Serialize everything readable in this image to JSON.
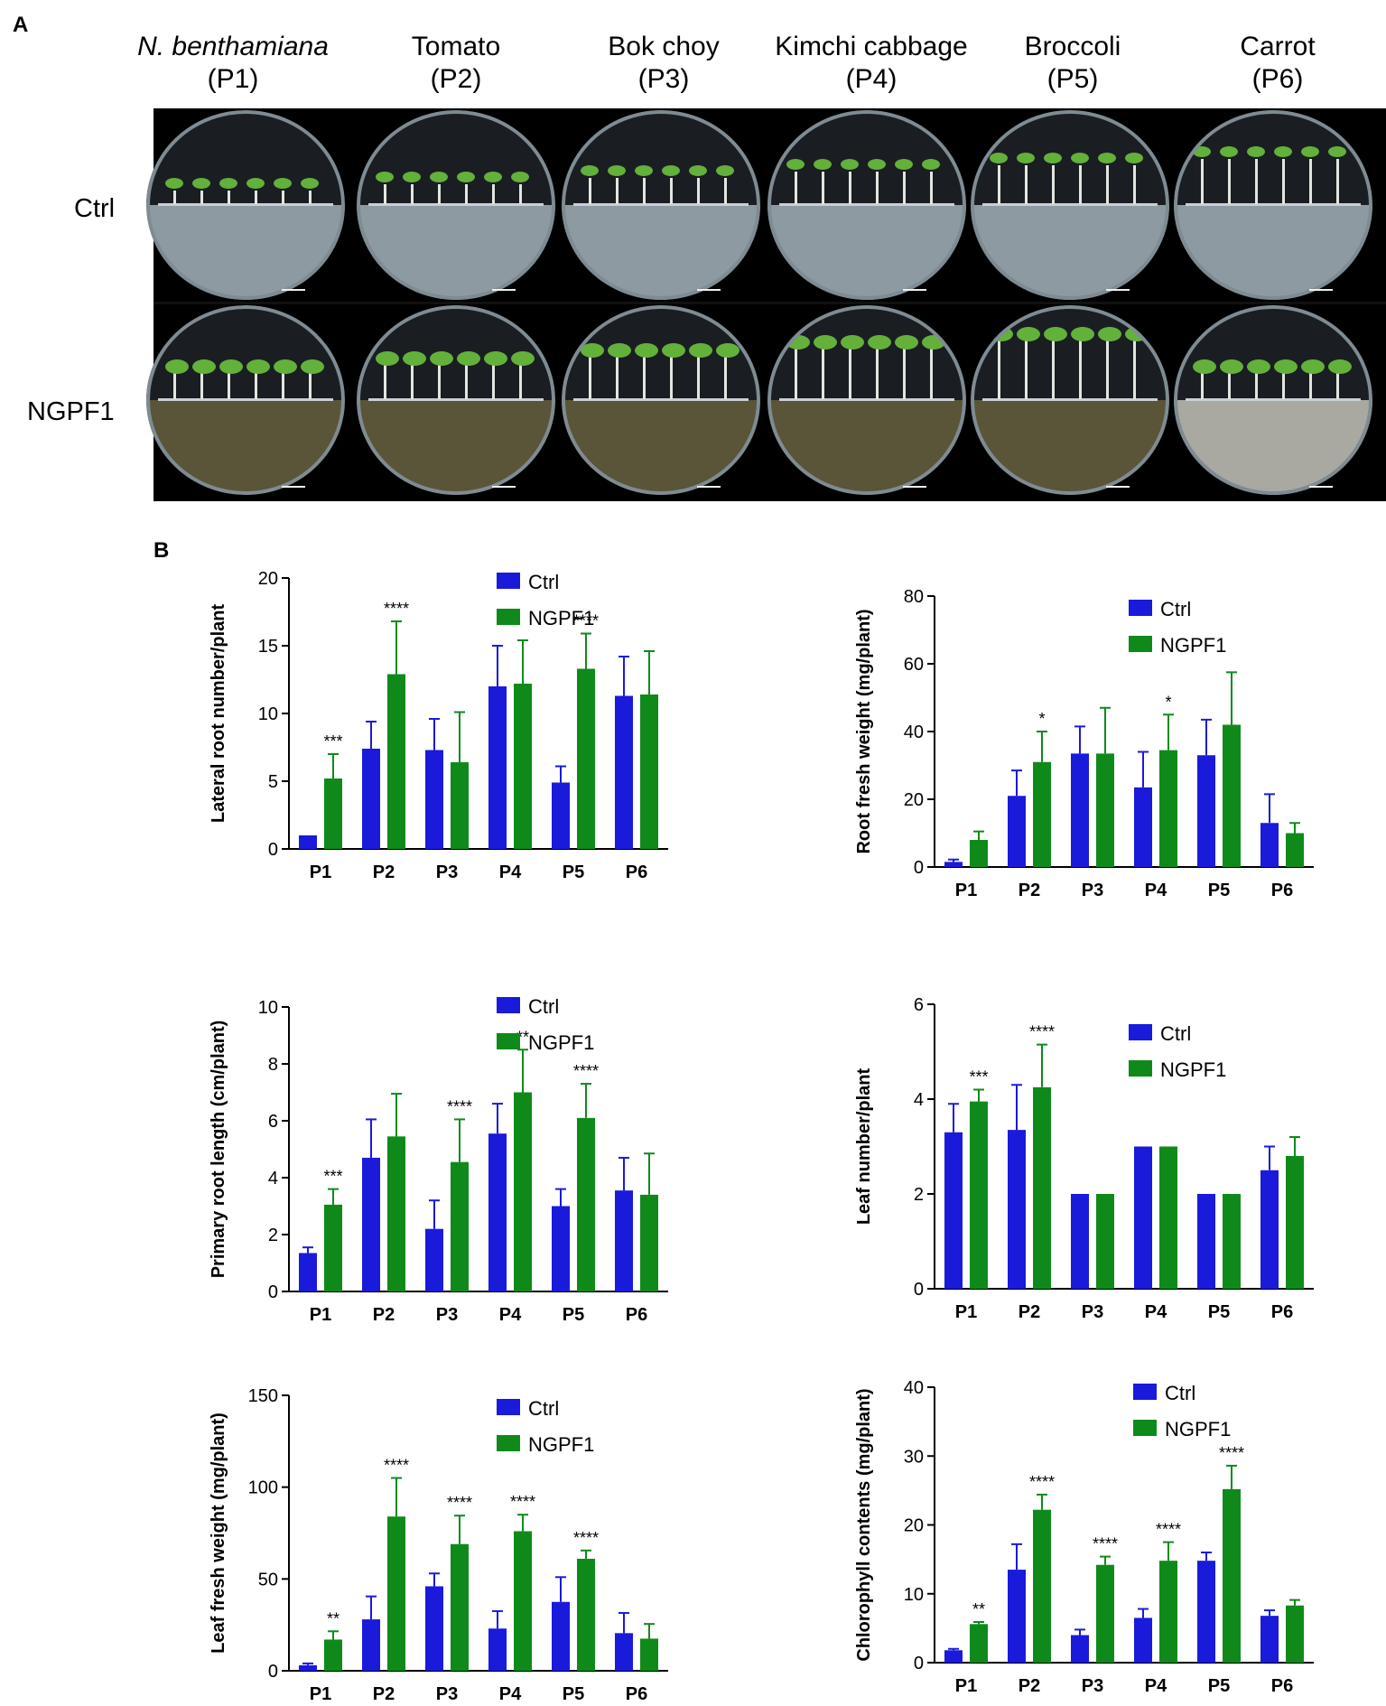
{
  "figure": {
    "panel_a_label": "A",
    "panel_b_label": "B",
    "row_labels": [
      "Ctrl",
      "NGPF1"
    ],
    "columns": [
      {
        "name": "N. benthamiana",
        "code": "(P1)",
        "italic": true
      },
      {
        "name": "Tomato",
        "code": "(P2)",
        "italic": false
      },
      {
        "name": "Bok choy",
        "code": "(P3)",
        "italic": false
      },
      {
        "name": "Kimchi cabbage",
        "code": "(P4)",
        "italic": false
      },
      {
        "name": "Broccoli",
        "code": "(P5)",
        "italic": false
      },
      {
        "name": "Carrot",
        "code": "(P6)",
        "italic": false
      }
    ],
    "colors": {
      "ctrl": "#1a1adb",
      "ngpf1": "#0f8a1a",
      "agar_ctrl": "#8e9aa2",
      "agar_ngpf1": "#5a5439",
      "agar_carrot": "#a9a9a2"
    }
  },
  "chart_data": [
    {
      "type": "bar",
      "ylabel": "Lateral root number/plant",
      "categories": [
        "P1",
        "P2",
        "P3",
        "P4",
        "P5",
        "P6"
      ],
      "ylim": [
        0,
        20
      ],
      "yticks": [
        0,
        5,
        10,
        15,
        20
      ],
      "legend": [
        "Ctrl",
        "NGPF1"
      ],
      "series": [
        {
          "name": "Ctrl",
          "values": [
            1.0,
            7.4,
            7.3,
            12.0,
            4.9,
            11.3
          ],
          "errors": [
            0.0,
            2.0,
            2.3,
            3.0,
            1.2,
            2.9
          ]
        },
        {
          "name": "NGPF1",
          "values": [
            5.2,
            12.9,
            6.4,
            12.2,
            13.3,
            11.4
          ],
          "errors": [
            1.8,
            3.9,
            3.7,
            3.2,
            2.6,
            3.2
          ]
        }
      ],
      "significance": [
        "***",
        "****",
        "",
        "",
        "****",
        ""
      ]
    },
    {
      "type": "bar",
      "ylabel": "Root fresh weight (mg/plant)",
      "categories": [
        "P1",
        "P2",
        "P3",
        "P4",
        "P5",
        "P6"
      ],
      "ylim": [
        0,
        80
      ],
      "yticks": [
        0,
        20,
        40,
        60,
        80
      ],
      "legend": [
        "Ctrl",
        "NGPF1"
      ],
      "series": [
        {
          "name": "Ctrl",
          "values": [
            1.5,
            21.0,
            33.5,
            23.5,
            33.0,
            13.0
          ],
          "errors": [
            0.7,
            7.5,
            8.0,
            10.5,
            10.5,
            8.5
          ]
        },
        {
          "name": "NGPF1",
          "values": [
            8.0,
            31.0,
            33.5,
            34.5,
            42.0,
            10.0
          ],
          "errors": [
            2.5,
            9.0,
            13.5,
            10.5,
            15.5,
            3.0
          ]
        }
      ],
      "significance": [
        "",
        "*",
        "",
        "*",
        "",
        ""
      ]
    },
    {
      "type": "bar",
      "ylabel": "Primary root length (cm/plant)",
      "categories": [
        "P1",
        "P2",
        "P3",
        "P4",
        "P5",
        "P6"
      ],
      "ylim": [
        0,
        10
      ],
      "yticks": [
        0,
        2,
        4,
        6,
        8,
        10
      ],
      "legend": [
        "Ctrl",
        "NGPF1"
      ],
      "series": [
        {
          "name": "Ctrl",
          "values": [
            1.35,
            4.7,
            2.2,
            5.55,
            3.0,
            3.55
          ],
          "errors": [
            0.2,
            1.35,
            1.0,
            1.05,
            0.6,
            1.15
          ]
        },
        {
          "name": "NGPF1",
          "values": [
            3.05,
            5.45,
            4.55,
            7.0,
            6.1,
            3.4
          ],
          "errors": [
            0.55,
            1.5,
            1.5,
            1.5,
            1.2,
            1.45
          ]
        }
      ],
      "significance": [
        "***",
        "",
        "****",
        "**",
        "****",
        ""
      ]
    },
    {
      "type": "bar",
      "ylabel": "Leaf number/plant",
      "categories": [
        "P1",
        "P2",
        "P3",
        "P4",
        "P5",
        "P6"
      ],
      "ylim": [
        0,
        6
      ],
      "yticks": [
        0,
        2,
        4,
        6
      ],
      "legend": [
        "Ctrl",
        "NGPF1"
      ],
      "series": [
        {
          "name": "Ctrl",
          "values": [
            3.3,
            3.35,
            2.0,
            3.0,
            2.0,
            2.5
          ],
          "errors": [
            0.6,
            0.95,
            0.0,
            0.0,
            0.0,
            0.5
          ]
        },
        {
          "name": "NGPF1",
          "values": [
            3.95,
            4.25,
            2.0,
            3.0,
            2.0,
            2.8
          ],
          "errors": [
            0.25,
            0.9,
            0.0,
            0.0,
            0.0,
            0.4
          ]
        }
      ],
      "significance": [
        "***",
        "****",
        "",
        "",
        "",
        ""
      ]
    },
    {
      "type": "bar",
      "ylabel": "Leaf fresh weight (mg/plant)",
      "categories": [
        "P1",
        "P2",
        "P3",
        "P4",
        "P5",
        "P6"
      ],
      "ylim": [
        0,
        150
      ],
      "yticks": [
        0,
        50,
        100,
        150
      ],
      "legend": [
        "Ctrl",
        "NGPF1"
      ],
      "series": [
        {
          "name": "Ctrl",
          "values": [
            3.0,
            28.0,
            46.0,
            23.0,
            37.5,
            20.5
          ],
          "errors": [
            1.0,
            12.5,
            7.0,
            9.5,
            13.5,
            11.0
          ]
        },
        {
          "name": "NGPF1",
          "values": [
            17.0,
            84.0,
            69.0,
            76.0,
            61.0,
            17.5
          ],
          "errors": [
            4.5,
            21.0,
            15.5,
            9.0,
            4.5,
            8.0
          ]
        }
      ],
      "significance": [
        "**",
        "****",
        "****",
        "****",
        "****",
        ""
      ]
    },
    {
      "type": "bar",
      "ylabel": "Chlorophyll contents (mg/plant)",
      "categories": [
        "P1",
        "P2",
        "P3",
        "P4",
        "P5",
        "P6"
      ],
      "ylim": [
        0,
        40
      ],
      "yticks": [
        0,
        10,
        20,
        30,
        40
      ],
      "legend": [
        "Ctrl",
        "NGPF1"
      ],
      "series": [
        {
          "name": "Ctrl",
          "values": [
            1.8,
            13.5,
            4.0,
            6.5,
            14.8,
            6.8
          ],
          "errors": [
            0.2,
            3.7,
            0.8,
            1.3,
            1.2,
            0.8
          ]
        },
        {
          "name": "NGPF1",
          "values": [
            5.6,
            22.2,
            14.2,
            14.8,
            25.2,
            8.3
          ],
          "errors": [
            0.3,
            2.2,
            1.2,
            2.7,
            3.4,
            0.8
          ]
        }
      ],
      "significance": [
        "**",
        "****",
        "****",
        "****",
        "****",
        ""
      ]
    }
  ]
}
